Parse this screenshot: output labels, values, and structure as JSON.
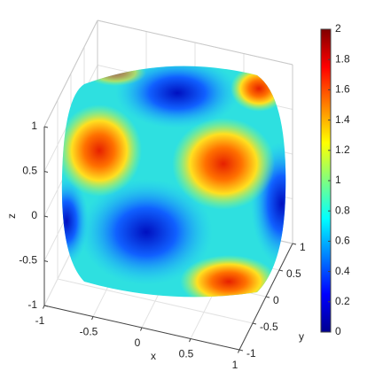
{
  "chart_data": {
    "type": "surface",
    "xlabel": "x",
    "ylabel": "y",
    "zlabel": "z",
    "xlim": [
      -1,
      1
    ],
    "ylim": [
      -1,
      1
    ],
    "zlim": [
      -1,
      1
    ],
    "xticks": [
      -1,
      -0.5,
      0,
      0.5,
      1
    ],
    "yticks": [
      -1,
      -0.5,
      0,
      0.5,
      1
    ],
    "zticks": [
      -1,
      -0.5,
      0,
      0.5,
      1
    ],
    "grid": true,
    "colormap": "jet",
    "clim": [
      0,
      2
    ],
    "cticks": [
      0,
      0.2,
      0.4,
      0.6,
      0.8,
      1,
      1.2,
      1.4,
      1.6,
      1.8,
      2
    ]
  }
}
